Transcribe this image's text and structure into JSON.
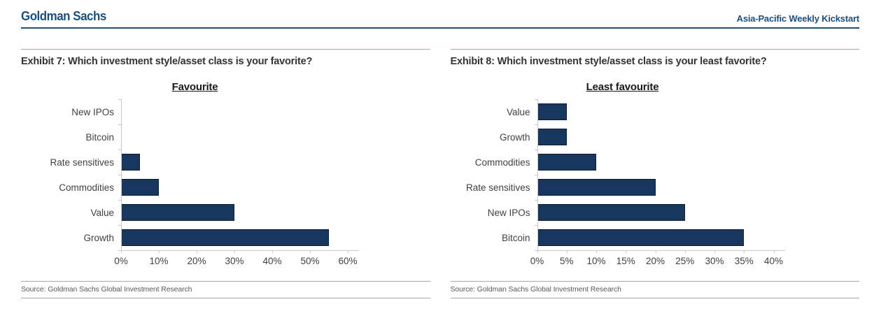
{
  "header": {
    "brand": "Goldman Sachs",
    "publication": "Asia-Pacific Weekly Kickstart"
  },
  "colors": {
    "navy": "#1D4F7C",
    "bar_fill": "#17375E",
    "bar_border": "#101C2C",
    "rule_gray": "#A6A6A6",
    "axis_gray": "#C8C8C8",
    "title_dark": "#333333",
    "label_gray": "#404040",
    "source_gray": "#595959"
  },
  "exhibits": [
    {
      "title": "Exhibit 7: Which investment style/asset class is your favorite?",
      "source": "Source: Goldman Sachs Global Investment Research"
    },
    {
      "title": "Exhibit 8: Which investment style/asset class is your least favorite?",
      "source": "Source: Goldman Sachs Global Investment Research"
    }
  ],
  "chart_data": [
    {
      "type": "bar",
      "orientation": "horizontal",
      "title": "Favourite",
      "categories": [
        "New IPOs",
        "Bitcoin",
        "Rate sensitives",
        "Commodities",
        "Value",
        "Growth"
      ],
      "values": [
        0,
        0,
        5,
        10,
        30,
        55
      ],
      "unit": "%",
      "xlim": [
        0,
        60
      ],
      "xtick_step": 10,
      "xtick_labels": [
        "0%",
        "10%",
        "20%",
        "30%",
        "40%",
        "50%",
        "60%"
      ],
      "grid": false,
      "legend": null
    },
    {
      "type": "bar",
      "orientation": "horizontal",
      "title": "Least favourite",
      "categories": [
        "Value",
        "Growth",
        "Commodities",
        "Rate sensitives",
        "New IPOs",
        "Bitcoin"
      ],
      "values": [
        5,
        5,
        10,
        20,
        25,
        35
      ],
      "unit": "%",
      "xlim": [
        0,
        40
      ],
      "xtick_step": 5,
      "xtick_labels": [
        "0%",
        "5%",
        "10%",
        "15%",
        "20%",
        "25%",
        "30%",
        "35%",
        "40%"
      ],
      "grid": false,
      "legend": null
    }
  ]
}
